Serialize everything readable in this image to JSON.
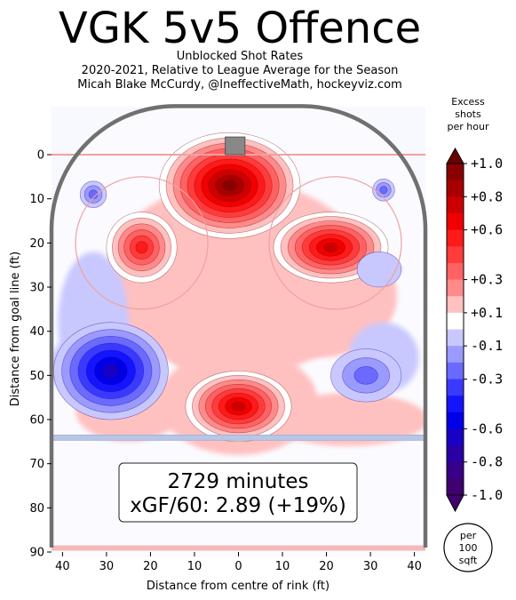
{
  "title": "VGK 5v5 Offence",
  "subtitle_lines": [
    "Unblocked Shot Rates",
    "2020-2021, Relative to League Average for the Season",
    "Micah Blake McCurdy, @IneffectiveMath, hockeyviz.com"
  ],
  "colorbar_title": [
    "Excess",
    "shots",
    "per hour"
  ],
  "colorbar_ticks": [
    "+1.0",
    "+0.8",
    "+0.6",
    "+0.3",
    "+0.1",
    "-0.1",
    "-0.3",
    "-0.6",
    "-0.8",
    "-1.0"
  ],
  "colorbar_tick_values": [
    1.0,
    0.8,
    0.6,
    0.3,
    0.1,
    -0.1,
    -0.3,
    -0.6,
    -0.8,
    -1.0
  ],
  "colorbar_levels": [
    {
      "lo": 0.9,
      "color": "#8a0000"
    },
    {
      "lo": 0.8,
      "color": "#a80000"
    },
    {
      "lo": 0.7,
      "color": "#cc0000"
    },
    {
      "lo": 0.6,
      "color": "#f00000"
    },
    {
      "lo": 0.5,
      "color": "#ff1a1a"
    },
    {
      "lo": 0.4,
      "color": "#ff3b3b"
    },
    {
      "lo": 0.3,
      "color": "#ff6262"
    },
    {
      "lo": 0.2,
      "color": "#ff8a8a"
    },
    {
      "lo": 0.1,
      "color": "#ffc0c0"
    },
    {
      "lo": 0.0,
      "color": "#ffffff"
    },
    {
      "lo": -0.1,
      "color": "#c8c8ff"
    },
    {
      "lo": -0.2,
      "color": "#9a9aff"
    },
    {
      "lo": -0.3,
      "color": "#6a6aff"
    },
    {
      "lo": -0.4,
      "color": "#3a3aff"
    },
    {
      "lo": -0.5,
      "color": "#1414ff"
    },
    {
      "lo": -0.6,
      "color": "#0000e8"
    },
    {
      "lo": -0.7,
      "color": "#1800c4"
    },
    {
      "lo": -0.8,
      "color": "#2800a4"
    },
    {
      "lo": -0.9,
      "color": "#380088"
    },
    {
      "lo": -1.0,
      "color": "#40006f"
    }
  ],
  "unit_label": [
    "per",
    "100",
    "sqft"
  ],
  "summary": {
    "minutes": "2729 minutes",
    "xgf": "xGF/60: 2.89 (+19%)"
  },
  "chart_data": {
    "type": "heatmap",
    "title": "VGK 5v5 Offence",
    "xlabel": "Distance from centre of rink (ft)",
    "ylabel": "Distance from goal line (ft)",
    "xlim": [
      -42.5,
      42.5
    ],
    "ylim": [
      -11,
      90
    ],
    "x_ticks": [
      -40,
      -30,
      -20,
      -10,
      0,
      10,
      20,
      30,
      40
    ],
    "x_tick_labels": [
      "40",
      "30",
      "20",
      "10",
      "0",
      "10",
      "20",
      "30",
      "40"
    ],
    "y_ticks": [
      0,
      10,
      20,
      30,
      40,
      50,
      60,
      70,
      80,
      90
    ],
    "y_tick_labels": [
      "0",
      "10",
      "20",
      "30",
      "40",
      "50",
      "60",
      "70",
      "80",
      "90"
    ],
    "colorbar_range": [
      -1.0,
      1.0
    ],
    "hotspots": [
      {
        "x": -2,
        "y": 7,
        "value": 1.0,
        "note": "slot / crease, highest excess"
      },
      {
        "x": 21,
        "y": 21,
        "value": 0.75
      },
      {
        "x": -22,
        "y": 21,
        "value": 0.55
      },
      {
        "x": 0,
        "y": 57,
        "value": 0.8
      },
      {
        "x": -29,
        "y": 49,
        "value": -0.65
      },
      {
        "x": 29,
        "y": 50,
        "value": -0.3
      },
      {
        "x": 33,
        "y": 8,
        "value": -0.3
      },
      {
        "x": -33,
        "y": 9,
        "value": -0.3
      },
      {
        "x": 32,
        "y": 26,
        "value": -0.15
      }
    ]
  }
}
